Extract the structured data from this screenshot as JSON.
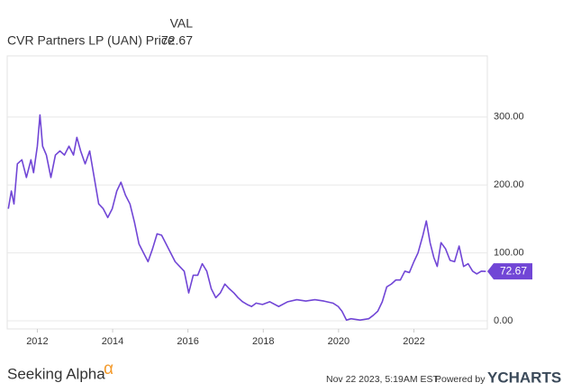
{
  "chart_data": {
    "type": "line",
    "value_header": "VAL",
    "timestamp": "Nov 22 2023, 5:19AM EST.",
    "powered_by": "Powered by",
    "brand": "YCHARTS",
    "source_logo": "Seeking Alpha",
    "source_logo_mark": "α",
    "xlim": [
      2011.2,
      2023.95
    ],
    "xticks": [
      2012,
      2014,
      2016,
      2018,
      2020,
      2022
    ],
    "ylim": [
      -12,
      390
    ],
    "yticks": [
      {
        "value": 0,
        "label": "0.00"
      },
      {
        "value": 100,
        "label": "100.00"
      },
      {
        "value": 200,
        "label": "200.00"
      },
      {
        "value": 300,
        "label": "300.00"
      }
    ],
    "grid": true,
    "x": [
      2011.23,
      2011.31,
      2011.38,
      2011.47,
      2011.59,
      2011.71,
      2011.83,
      2011.9,
      2012.0,
      2012.07,
      2012.14,
      2012.24,
      2012.36,
      2012.48,
      2012.6,
      2012.72,
      2012.84,
      2012.96,
      2013.05,
      2013.15,
      2013.27,
      2013.39,
      2013.51,
      2013.63,
      2013.75,
      2013.87,
      2013.99,
      2014.11,
      2014.22,
      2014.34,
      2014.46,
      2014.58,
      2014.7,
      2014.82,
      2014.94,
      2015.06,
      2015.18,
      2015.3,
      2015.42,
      2015.54,
      2015.66,
      2015.78,
      2015.9,
      2016.02,
      2016.14,
      2016.26,
      2016.38,
      2016.5,
      2016.62,
      2016.74,
      2016.86,
      2016.98,
      2017.1,
      2017.22,
      2017.33,
      2017.45,
      2017.57,
      2017.69,
      2017.81,
      2017.98,
      2018.17,
      2018.41,
      2018.65,
      2018.89,
      2019.13,
      2019.37,
      2019.61,
      2019.85,
      2019.99,
      2020.09,
      2020.21,
      2020.33,
      2020.57,
      2020.8,
      2020.92,
      2021.04,
      2021.16,
      2021.28,
      2021.4,
      2021.52,
      2021.64,
      2021.76,
      2021.88,
      2022.0,
      2022.11,
      2022.24,
      2022.33,
      2022.43,
      2022.53,
      2022.62,
      2022.72,
      2022.84,
      2022.96,
      2023.08,
      2023.2,
      2023.32,
      2023.44,
      2023.56,
      2023.67,
      2023.79,
      2023.91
    ],
    "series": [
      {
        "name": "CVR Partners LP (UAN) Price",
        "color": "#7146d6",
        "values": [
          165,
          191,
          172,
          231,
          237,
          211,
          237,
          218,
          257,
          303,
          257,
          244,
          211,
          244,
          250,
          244,
          257,
          244,
          270,
          250,
          231,
          250,
          211,
          172,
          165,
          152,
          165,
          191,
          204,
          185,
          172,
          145,
          113,
          100,
          87,
          106,
          128,
          126,
          113,
          100,
          87,
          80,
          73,
          41,
          67,
          67,
          84,
          73,
          47,
          34,
          41,
          54,
          47,
          41,
          34,
          28,
          24,
          21,
          26,
          24,
          28,
          21,
          28,
          31,
          29,
          31,
          29,
          26,
          21,
          14,
          1,
          3,
          1,
          3,
          8,
          14,
          28,
          50,
          54,
          60,
          60,
          73,
          71,
          87,
          100,
          126,
          147,
          115,
          93,
          80,
          115,
          106,
          89,
          87,
          110,
          80,
          84,
          73,
          69,
          73,
          72.67
        ]
      }
    ]
  }
}
